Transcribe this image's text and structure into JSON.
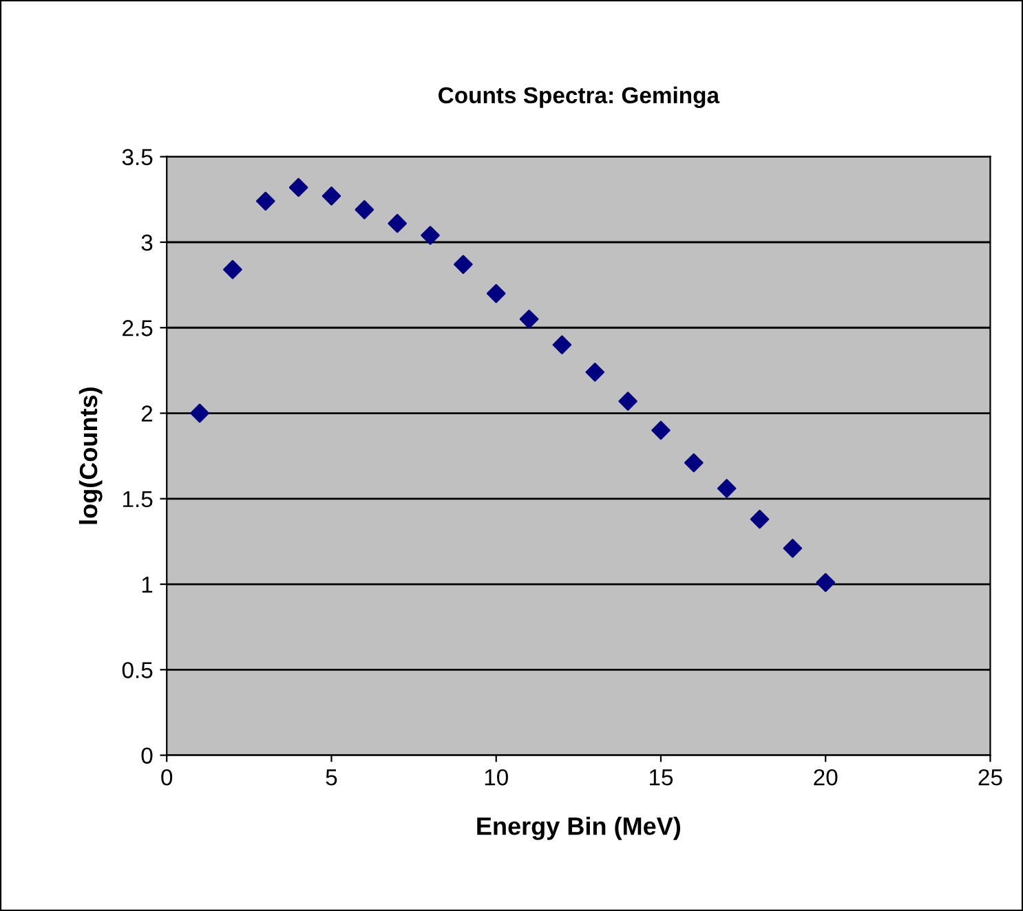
{
  "chart_data": {
    "type": "scatter",
    "title": "Counts Spectra: Geminga",
    "xlabel": "Energy Bin (MeV)",
    "ylabel": "log(Counts)",
    "x": [
      1,
      2,
      3,
      4,
      5,
      6,
      7,
      8,
      9,
      10,
      11,
      12,
      13,
      14,
      15,
      16,
      17,
      18,
      19,
      20
    ],
    "series": [
      {
        "color": "#000080",
        "values": [
          2.0,
          2.84,
          3.24,
          3.32,
          3.27,
          3.19,
          3.11,
          3.04,
          2.87,
          2.7,
          2.55,
          2.4,
          2.24,
          2.07,
          1.9,
          1.71,
          1.56,
          1.38,
          1.21,
          1.01
        ]
      }
    ],
    "xlim": [
      0,
      25
    ],
    "xticks": [
      0,
      5,
      10,
      15,
      20,
      25
    ],
    "ylim": [
      0,
      3.5
    ],
    "yticks": [
      0,
      0.5,
      1,
      1.5,
      2,
      2.5,
      3,
      3.5
    ],
    "grid": "y",
    "marker": "diamond",
    "legend": false
  }
}
